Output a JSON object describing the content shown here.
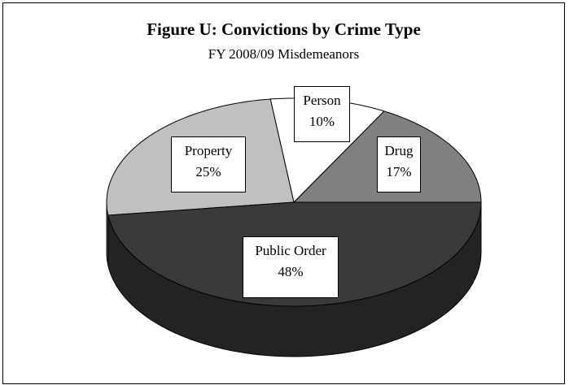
{
  "chart_data": {
    "type": "pie",
    "title": "Figure U:  Convictions by Crime Type",
    "subtitle": "FY 2008/09 Misdemeanors",
    "slices": [
      {
        "name": "Public Order",
        "value": 48,
        "label": "48%",
        "color": "#3a3a3a"
      },
      {
        "name": "Property",
        "value": 25,
        "label": "25%",
        "color": "#c0c0c0"
      },
      {
        "name": "Person",
        "value": 10,
        "label": "10%",
        "color": "#ffffff"
      },
      {
        "name": "Drug",
        "value": 17,
        "label": "17%",
        "color": "#808080"
      }
    ],
    "style": "3d"
  }
}
